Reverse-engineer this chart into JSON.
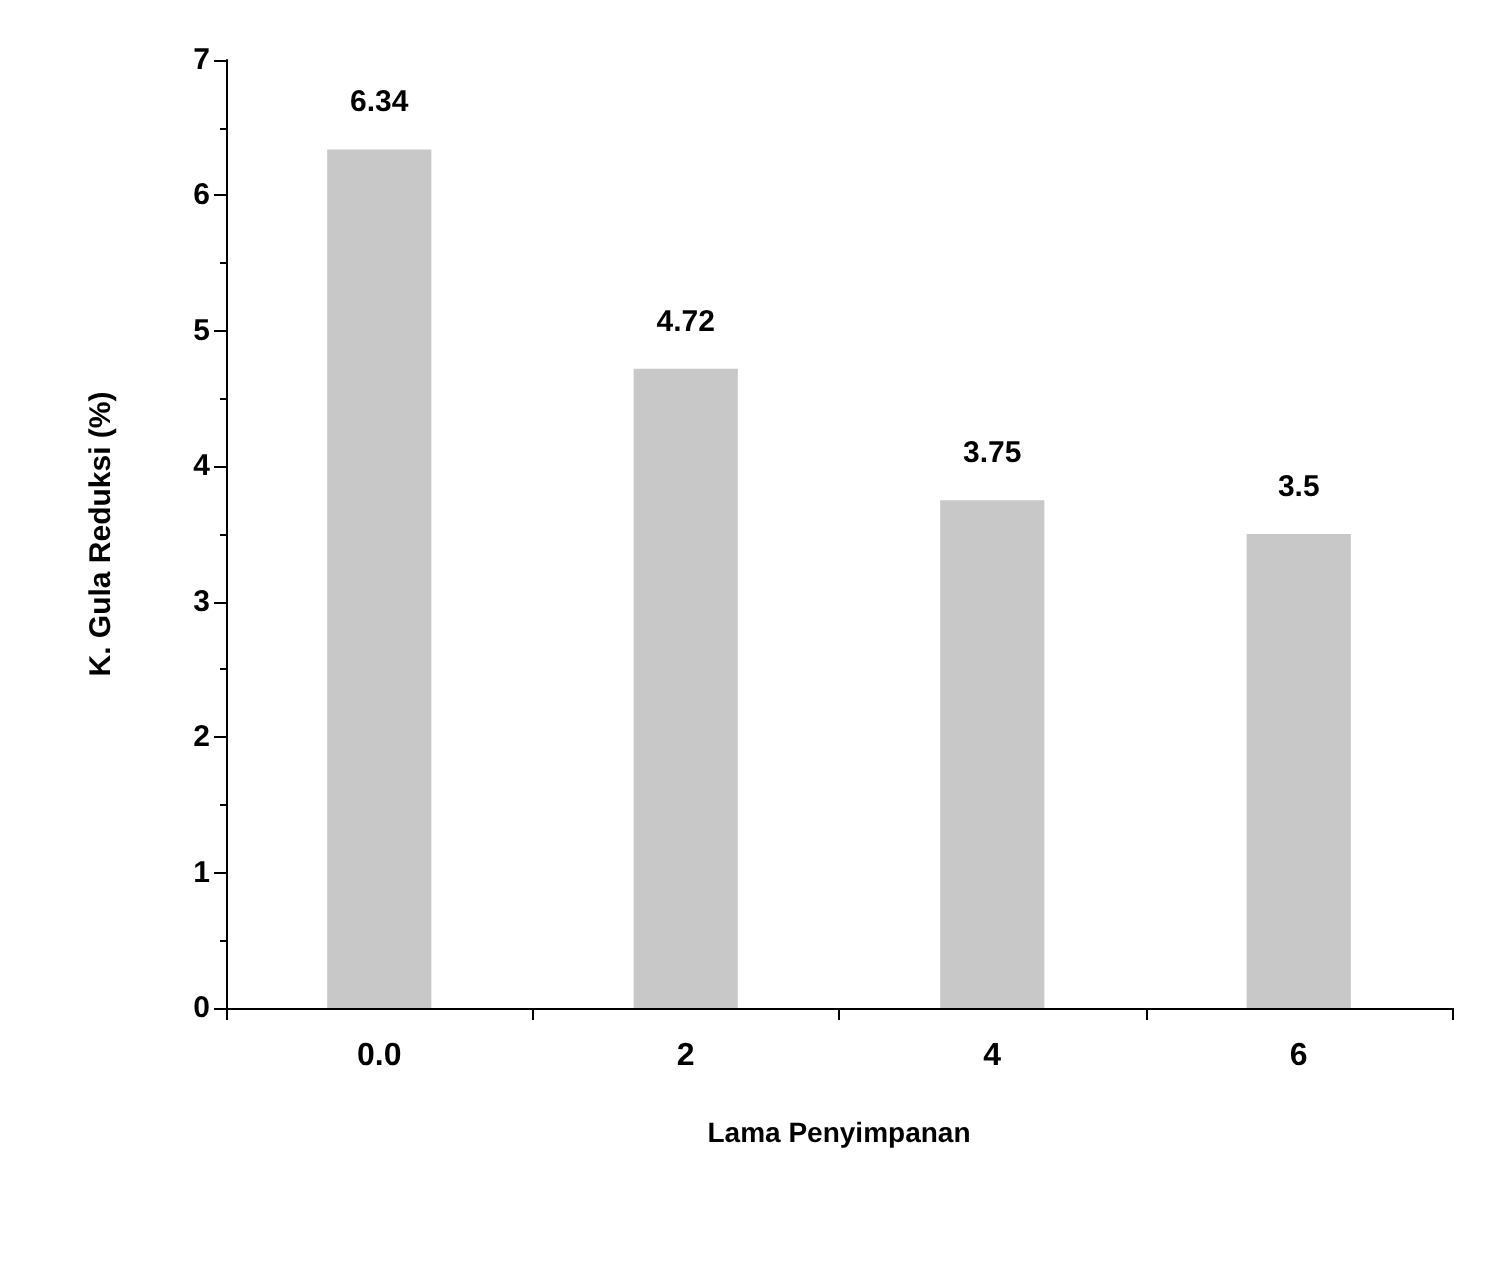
{
  "chart_data": {
    "type": "bar",
    "xlabel": "Lama Penyimpanan",
    "ylabel": "K. Gula Reduksi (%)",
    "categories": [
      "0.0",
      "2",
      "4",
      "6"
    ],
    "values": [
      6.34,
      4.72,
      3.75,
      3.5
    ],
    "color": "#c8c8c8",
    "ylim": [
      0,
      7
    ],
    "yticks": [
      0,
      1,
      2,
      3,
      4,
      5,
      6,
      7
    ],
    "data_labels": true,
    "grid": false
  }
}
